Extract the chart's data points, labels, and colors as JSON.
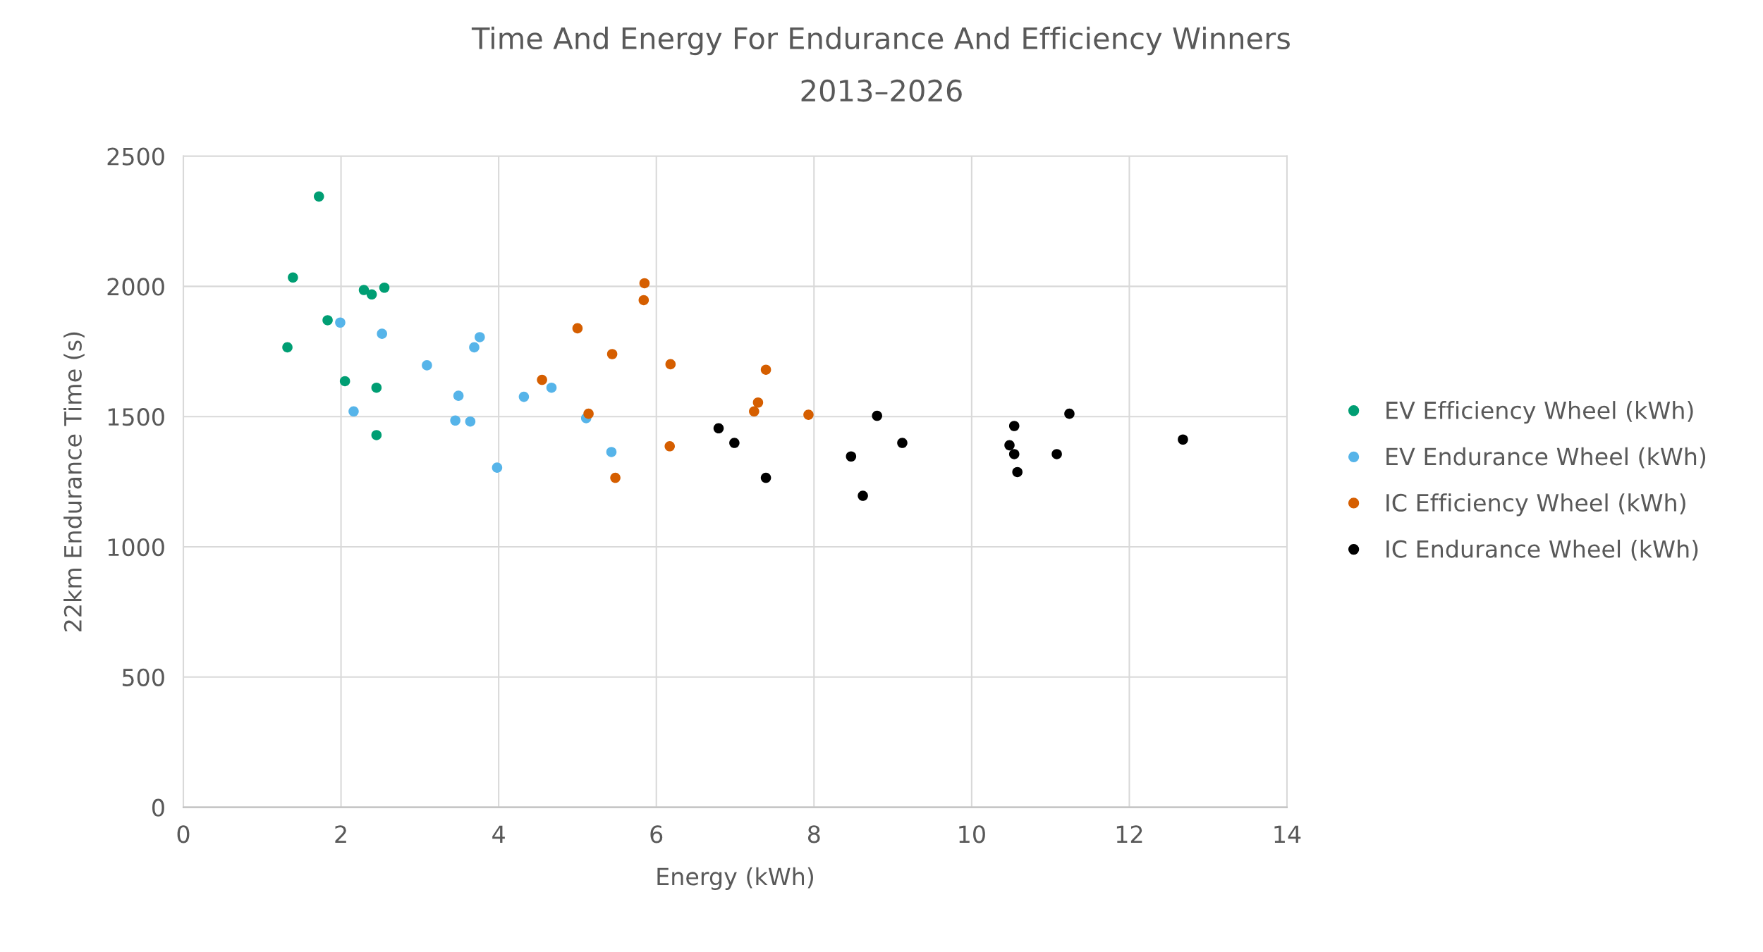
{
  "chart_data": {
    "type": "scatter",
    "title": "Time And Energy For Endurance And Efficiency Winners",
    "subtitle": "2013–2026",
    "xlabel": "Energy (kWh)",
    "ylabel": "22km Endurance Time (s)",
    "xlim": [
      0,
      14
    ],
    "xticks": [
      0,
      2,
      4,
      6,
      8,
      10,
      12,
      14
    ],
    "ylim": [
      0,
      2500
    ],
    "yticks": [
      0,
      500,
      1000,
      1500,
      2000,
      2500
    ],
    "grid": true,
    "legend": "right",
    "marker": "circle",
    "series": [
      {
        "name": "EV Efficiency Wheel (kWh)",
        "color": "#009e73",
        "x": [
          1.32,
          1.72,
          1.39,
          1.83,
          2.29,
          2.39,
          2.55,
          2.05,
          2.45,
          2.45
        ],
        "values": [
          1766,
          2345,
          2034,
          1870,
          1986,
          1969,
          1995,
          1636,
          1611,
          1429
        ]
      },
      {
        "name": "EV Endurance Wheel (kWh)",
        "color": "#56b4e9",
        "x": [
          1.99,
          2.16,
          2.52,
          3.09,
          3.49,
          3.45,
          3.64,
          3.69,
          3.76,
          3.98,
          4.32,
          4.67,
          5.11,
          5.43
        ],
        "values": [
          1861,
          1520,
          1818,
          1697,
          1580,
          1485,
          1481,
          1766,
          1805,
          1304,
          1576,
          1611,
          1494,
          1364
        ]
      },
      {
        "name": "IC Efficiency Wheel (kWh)",
        "color": "#d55e00",
        "x": [
          4.55,
          5.0,
          5.14,
          5.44,
          5.48,
          5.85,
          5.84,
          6.17,
          6.18,
          7.24,
          7.29,
          7.39,
          7.93
        ],
        "values": [
          1641,
          1839,
          1511,
          1740,
          1265,
          2012,
          1947,
          1386,
          1701,
          1520,
          1554,
          1680,
          1507
        ]
      },
      {
        "name": "IC Endurance Wheel (kWh)",
        "color": "#000000",
        "x": [
          6.79,
          6.99,
          7.39,
          8.47,
          8.62,
          8.8,
          9.12,
          10.48,
          10.54,
          10.54,
          10.58,
          11.08,
          11.24,
          12.68
        ],
        "values": [
          1455,
          1399,
          1265,
          1347,
          1196,
          1503,
          1399,
          1390,
          1464,
          1356,
          1287,
          1356,
          1511,
          1412
        ]
      }
    ]
  }
}
